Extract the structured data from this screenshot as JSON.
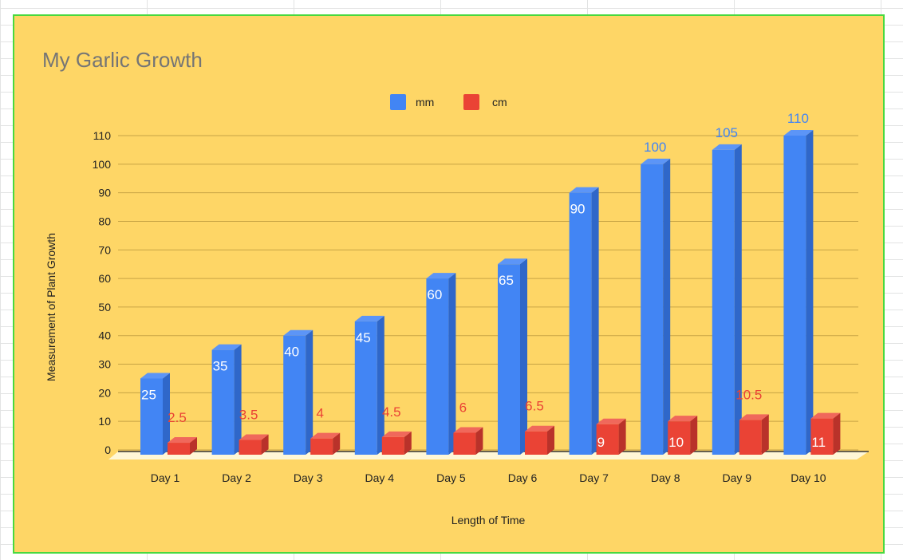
{
  "colors": {
    "background": "#fed666",
    "mm": "#4285f4",
    "mm_side": "#2f67c9",
    "mm_top": "#5c95f7",
    "cm": "#ea4335",
    "cm_side": "#b9322a",
    "cm_top": "#f0685b",
    "grid": "#c7a445",
    "label_inside": "#ffffff"
  },
  "chart_data": {
    "type": "bar",
    "title": "My Garlic Growth",
    "xlabel": "Length of Time",
    "ylabel": "Measurement of Plant Growth",
    "categories": [
      "Day 1",
      "Day 2",
      "Day 3",
      "Day 4",
      "Day 5",
      "Day 6",
      "Day 7",
      "Day 8",
      "Day 9",
      "Day 10"
    ],
    "series": [
      {
        "name": "mm",
        "values": [
          25,
          35,
          40,
          45,
          60,
          65,
          90,
          100,
          105,
          110
        ],
        "labels": [
          "25",
          "35",
          "40",
          "45",
          "60",
          "65",
          "90",
          "100",
          "105",
          "110"
        ]
      },
      {
        "name": "cm",
        "values": [
          2.5,
          3.5,
          4,
          4.5,
          6,
          6.5,
          9,
          10,
          10.5,
          11
        ],
        "labels": [
          "2.5",
          "3.5",
          "4",
          "4.5",
          "6",
          "6.5",
          "9",
          "10",
          "10.5",
          "11"
        ]
      }
    ],
    "ylim": [
      0,
      110
    ],
    "yticks": [
      "0",
      "10",
      "20",
      "30",
      "40",
      "50",
      "60",
      "70",
      "80",
      "90",
      "100",
      "110"
    ],
    "grid": true,
    "legend_position": "top-center",
    "style": "3d"
  }
}
